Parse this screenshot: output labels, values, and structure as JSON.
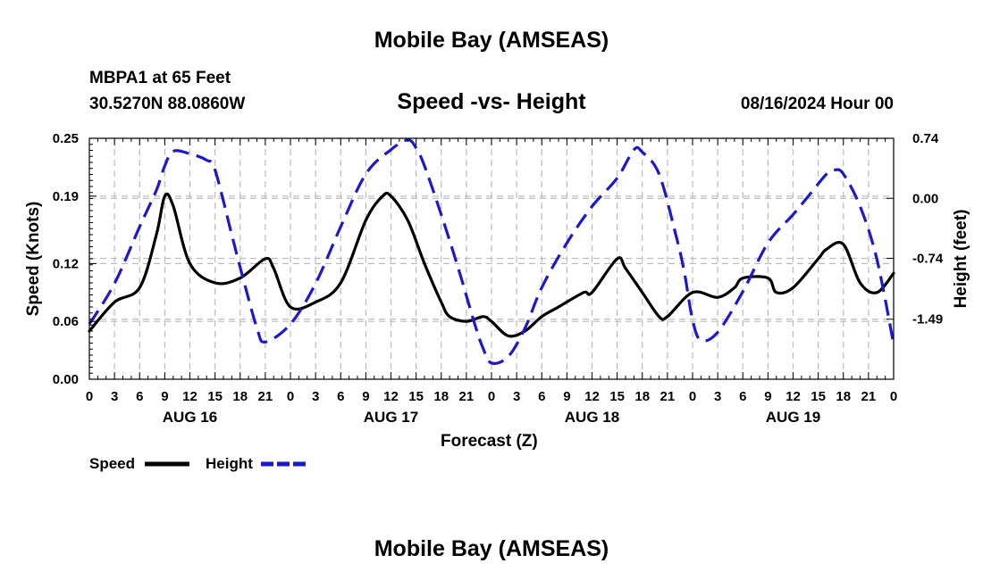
{
  "header": {
    "title": "Mobile Bay (AMSEAS)",
    "station_line": "MBPA1 at 65 Feet",
    "coords_line": "30.5270N  88.0860W",
    "chart_title": "Speed -vs- Height",
    "run_time": "08/16/2024 Hour 00",
    "footer_title": "Mobile Bay (AMSEAS)"
  },
  "legend": {
    "speed_label": "Speed",
    "height_label": "Height"
  },
  "colors": {
    "speed": "#000000",
    "height": "#1a1acc",
    "grid": "#bbbbbb"
  },
  "chart_data": {
    "type": "line",
    "title": "Speed -vs- Height",
    "xlabel": "Forecast (Z)",
    "ylabel": "Speed (Knots)",
    "y2label": "Height (feet)",
    "xlim": [
      0,
      96
    ],
    "ylim": [
      0,
      0.25
    ],
    "y2lim": [
      -2.23,
      0.74
    ],
    "y_ticks": [
      0.0,
      0.06,
      0.12,
      0.19,
      0.25
    ],
    "y_tick_labels": [
      "0.00",
      "0.06",
      "0.12",
      "0.19",
      "0.25"
    ],
    "y2_ticks": [
      0.74,
      0.0,
      -0.74,
      -1.49
    ],
    "y2_tick_labels": [
      "0.74",
      "0.00",
      "-0.74",
      "-1.49"
    ],
    "x_ticks": [
      0,
      3,
      6,
      9,
      12,
      15,
      18,
      21,
      24,
      27,
      30,
      33,
      36,
      39,
      42,
      45,
      48,
      51,
      54,
      57,
      60,
      63,
      66,
      69,
      72,
      75,
      78,
      81,
      84,
      87,
      90,
      93,
      96
    ],
    "x_tick_labels": [
      "0",
      "3",
      "6",
      "9",
      "12",
      "15",
      "18",
      "21",
      "0",
      "3",
      "6",
      "9",
      "12",
      "15",
      "18",
      "21",
      "0",
      "3",
      "6",
      "9",
      "12",
      "15",
      "18",
      "21",
      "0",
      "3",
      "6",
      "9",
      "12",
      "15",
      "18",
      "21",
      "0"
    ],
    "day_labels": [
      {
        "x": 12,
        "label": "AUG 16"
      },
      {
        "x": 36,
        "label": "AUG 17"
      },
      {
        "x": 60,
        "label": "AUG 18"
      },
      {
        "x": 84,
        "label": "AUG 19"
      }
    ],
    "series": [
      {
        "name": "Speed",
        "axis": "left",
        "style": "solid",
        "x": [
          0,
          3,
          6,
          8,
          9,
          10,
          12,
          15,
          18,
          21,
          22,
          24,
          27,
          30,
          33,
          35,
          36,
          38,
          40,
          42,
          43,
          45,
          47,
          48,
          50,
          52,
          54,
          56,
          59,
          60,
          63,
          64,
          66,
          68,
          69,
          72,
          75,
          77,
          78,
          81,
          82,
          84,
          87,
          88,
          90,
          92,
          94,
          96
        ],
        "values": [
          0.05,
          0.08,
          0.095,
          0.15,
          0.19,
          0.18,
          0.12,
          0.1,
          0.105,
          0.125,
          0.115,
          0.075,
          0.08,
          0.1,
          0.165,
          0.19,
          0.19,
          0.165,
          0.12,
          0.08,
          0.065,
          0.06,
          0.065,
          0.06,
          0.045,
          0.05,
          0.065,
          0.075,
          0.09,
          0.09,
          0.125,
          0.115,
          0.09,
          0.065,
          0.065,
          0.09,
          0.085,
          0.095,
          0.105,
          0.105,
          0.09,
          0.095,
          0.125,
          0.135,
          0.14,
          0.1,
          0.09,
          0.11
        ]
      },
      {
        "name": "Height",
        "axis": "right",
        "style": "dashed",
        "x": [
          0,
          3,
          6,
          8,
          9,
          10,
          12,
          14,
          15,
          17,
          18,
          20,
          21,
          24,
          27,
          30,
          33,
          36,
          38,
          39,
          40,
          42,
          44,
          46,
          47,
          48,
          50,
          52,
          54,
          57,
          60,
          63,
          65,
          66,
          68,
          70,
          71,
          72,
          73,
          75,
          78,
          81,
          84,
          86,
          88,
          89,
          90,
          92,
          94,
          96
        ],
        "values": [
          -1.55,
          -1.05,
          -0.35,
          0.1,
          0.4,
          0.58,
          0.55,
          0.47,
          0.35,
          -0.45,
          -0.85,
          -1.6,
          -1.77,
          -1.55,
          -1.05,
          -0.35,
          0.3,
          0.6,
          0.72,
          0.62,
          0.4,
          -0.2,
          -0.85,
          -1.55,
          -1.85,
          -2.03,
          -1.95,
          -1.6,
          -1.1,
          -0.55,
          -0.1,
          0.25,
          0.6,
          0.57,
          0.3,
          -0.45,
          -0.9,
          -1.5,
          -1.75,
          -1.65,
          -1.15,
          -0.55,
          -0.2,
          0.05,
          0.3,
          0.35,
          0.3,
          -0.1,
          -0.75,
          -1.8
        ]
      }
    ]
  }
}
